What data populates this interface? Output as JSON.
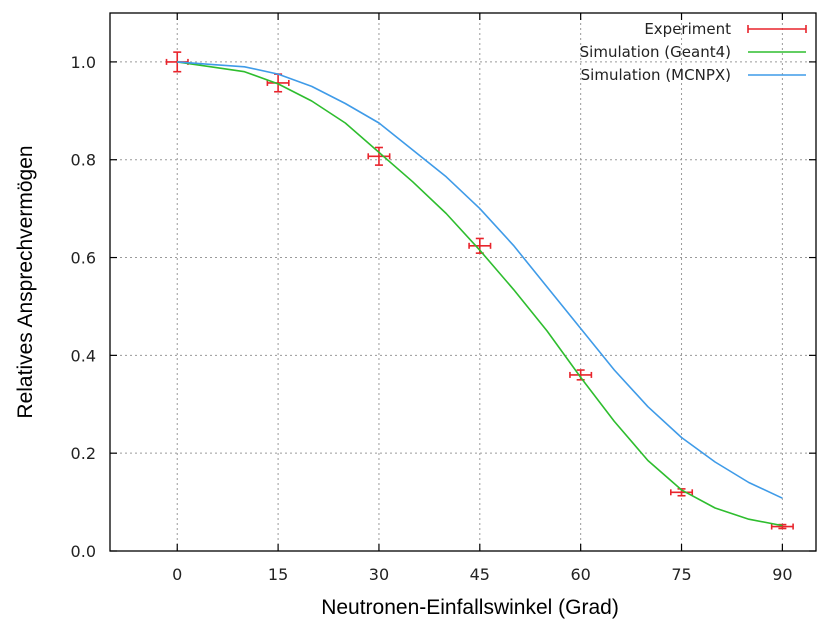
{
  "chart_data": {
    "type": "line",
    "xlabel": "Neutronen-Einfallswinkel (Grad)",
    "ylabel": "Relatives Ansprechvermögen",
    "xlim": [
      -10,
      95
    ],
    "ylim": [
      0.0,
      1.1
    ],
    "xticks": [
      0,
      15,
      30,
      45,
      60,
      75,
      90
    ],
    "yticks": [
      0.0,
      0.2,
      0.4,
      0.6,
      0.8,
      1.0
    ],
    "ytick_labels": [
      "0.0",
      "0.2",
      "0.4",
      "0.6",
      "0.8",
      "1.0"
    ],
    "grid": true,
    "legend_position": "top-right",
    "series": [
      {
        "name": "Experiment",
        "kind": "errorbar",
        "color": "#e8242c",
        "x": [
          0,
          15,
          30,
          45,
          60,
          75,
          90
        ],
        "y": [
          1.0,
          0.957,
          0.807,
          0.624,
          0.36,
          0.12,
          0.05
        ],
        "xerr": [
          1,
          1,
          1,
          1,
          1,
          1,
          1
        ],
        "yerr": [
          0.02,
          0.018,
          0.018,
          0.015,
          0.01,
          0.007,
          0.004
        ]
      },
      {
        "name": "Simulation (Geant4)",
        "kind": "line",
        "color": "#2ebd2e",
        "x": [
          0,
          5,
          10,
          15,
          20,
          25,
          30,
          35,
          40,
          45,
          50,
          55,
          60,
          65,
          70,
          75,
          80,
          85,
          90
        ],
        "y": [
          1.0,
          0.99,
          0.98,
          0.955,
          0.92,
          0.875,
          0.815,
          0.755,
          0.69,
          0.615,
          0.535,
          0.45,
          0.355,
          0.265,
          0.185,
          0.125,
          0.088,
          0.065,
          0.052
        ]
      },
      {
        "name": "Simulation (MCNPX)",
        "kind": "line",
        "color": "#3f9be8",
        "x": [
          0,
          5,
          10,
          15,
          20,
          25,
          30,
          35,
          40,
          45,
          50,
          55,
          60,
          65,
          70,
          75,
          80,
          85,
          90
        ],
        "y": [
          1.0,
          0.995,
          0.99,
          0.975,
          0.95,
          0.915,
          0.875,
          0.82,
          0.765,
          0.7,
          0.625,
          0.54,
          0.455,
          0.37,
          0.295,
          0.232,
          0.182,
          0.14,
          0.108
        ]
      }
    ]
  }
}
